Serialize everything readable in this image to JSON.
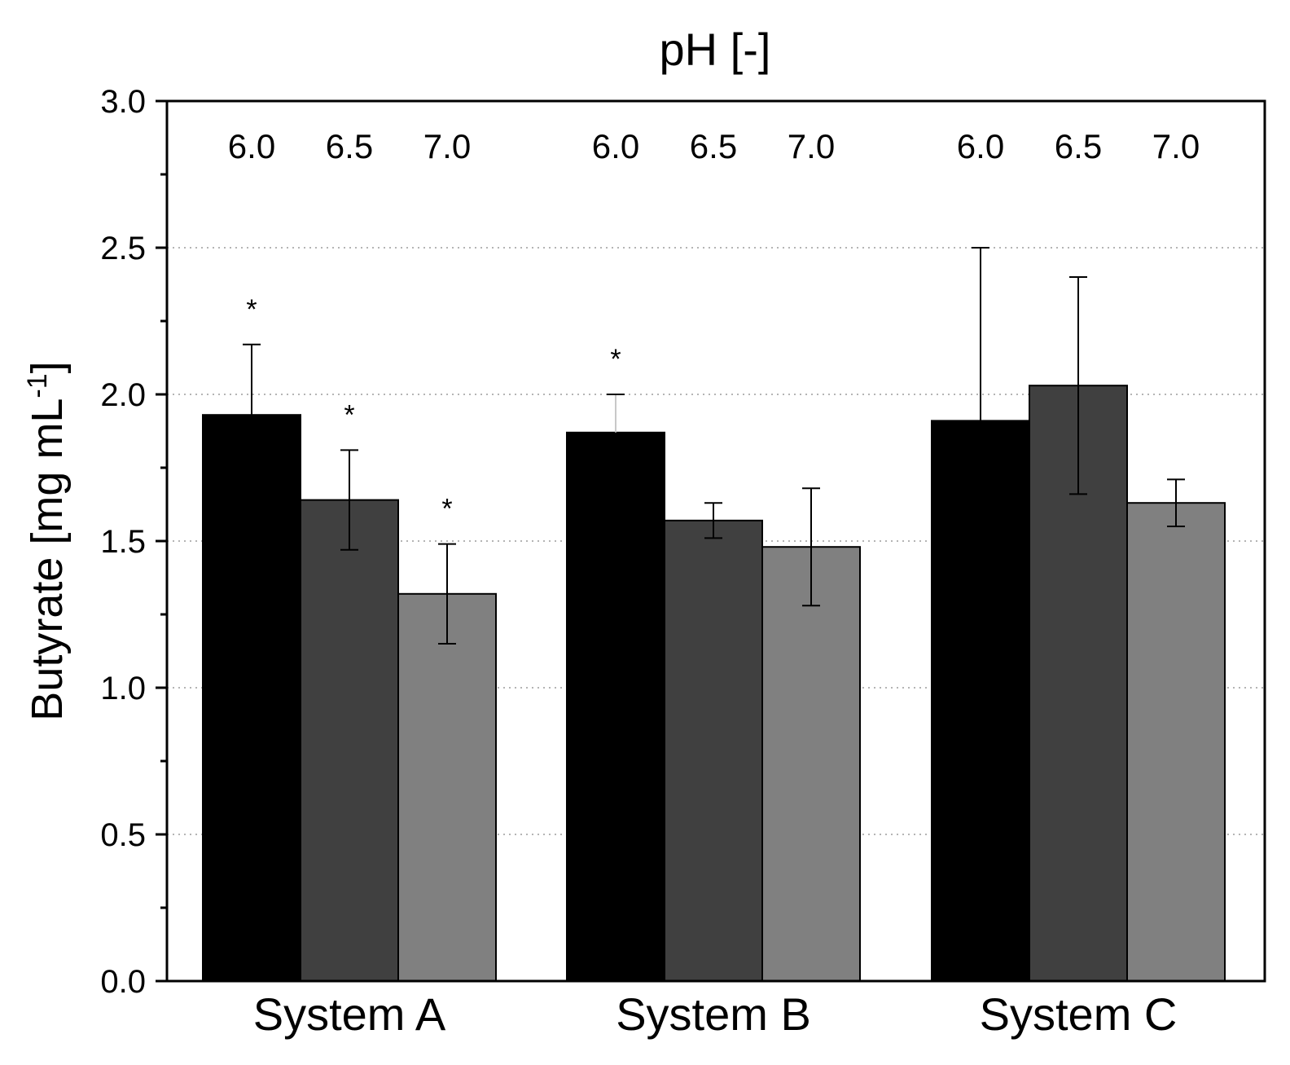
{
  "chart_data": {
    "type": "bar",
    "title": "pH [-]",
    "xlabel": "",
    "ylabel": {
      "main": "Butyrate [mg mL",
      "superscript": "-1",
      "close": "]"
    },
    "ylim": [
      0,
      3.0
    ],
    "yticks": [
      0.0,
      0.5,
      1.0,
      1.5,
      2.0,
      2.5,
      3.0
    ],
    "ytick_labels": [
      "0.0",
      "0.5",
      "1.0",
      "1.5",
      "2.0",
      "2.5",
      "3.0"
    ],
    "yminor_step": 0.25,
    "grid": "horizontal dotted at major ticks (0.5 to 2.5)",
    "legend": "none",
    "categories": [
      "System A",
      "System B",
      "System C"
    ],
    "series": [
      {
        "name": "6.0",
        "color": "#000000",
        "values": [
          1.93,
          1.87,
          1.91
        ],
        "errors": [
          0.24,
          0.13,
          0.59
        ],
        "significance": [
          "*",
          "*",
          ""
        ]
      },
      {
        "name": "6.5",
        "color": "#404040",
        "values": [
          1.64,
          1.57,
          2.03
        ],
        "errors": [
          0.17,
          0.06,
          0.37
        ],
        "significance": [
          "*",
          "",
          ""
        ]
      },
      {
        "name": "7.0",
        "color": "#808080",
        "values": [
          1.32,
          1.48,
          1.63
        ],
        "errors": [
          0.17,
          0.2,
          0.08
        ],
        "significance": [
          "*",
          "",
          ""
        ]
      }
    ],
    "colors": {
      "bar_outline": "#000000",
      "grid": "#b4b4b4",
      "axis": "#000000",
      "error_bar": "#000000",
      "error_bar_light": "#c8c8c8"
    }
  }
}
